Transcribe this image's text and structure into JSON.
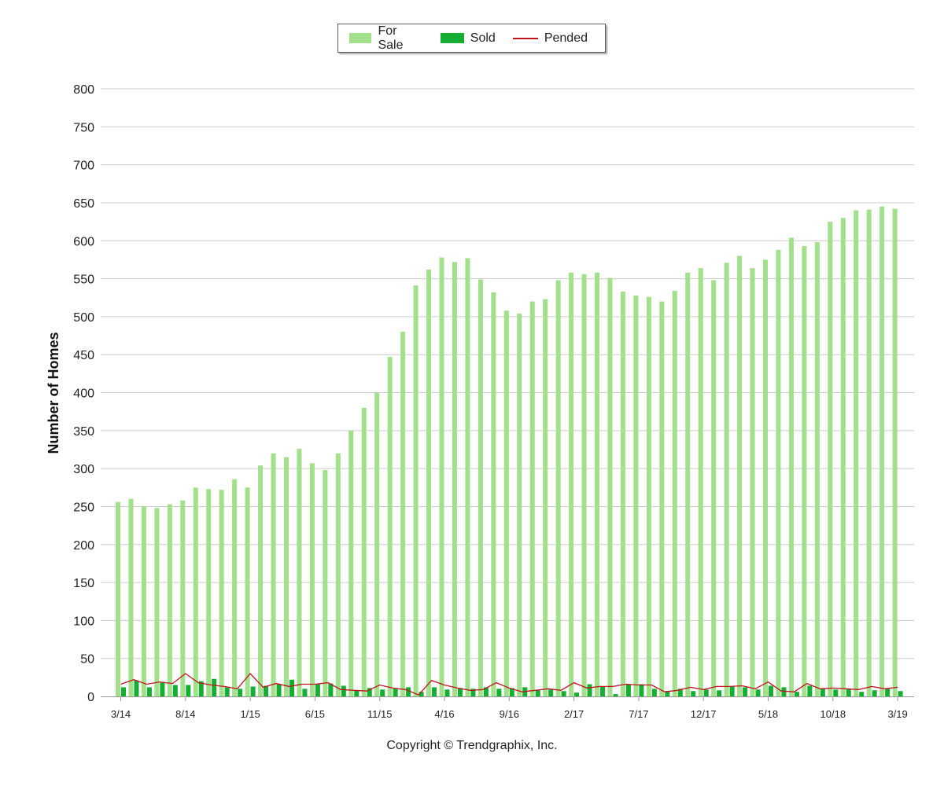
{
  "colors": {
    "for_sale": "#a2e08c",
    "sold": "#14ae32",
    "pended": "#c0141c",
    "grid": "#cccccc",
    "axis": "#999999"
  },
  "legend": {
    "for_sale": "For Sale",
    "sold": "Sold",
    "pended": "Pended"
  },
  "copyright": "Copyright © Trendgraphix, Inc.",
  "chart_data": {
    "type": "bar",
    "ylabel": "Number of Homes",
    "xlabel": "",
    "title": "",
    "ylim": [
      0,
      800
    ],
    "yticks": [
      0,
      50,
      100,
      150,
      200,
      250,
      300,
      350,
      400,
      450,
      500,
      550,
      600,
      650,
      700,
      750,
      800
    ],
    "grid": true,
    "legend_position": "top-center",
    "x_tick_labels": [
      {
        "index": 0,
        "label": "3/14"
      },
      {
        "index": 5,
        "label": "8/14"
      },
      {
        "index": 10,
        "label": "1/15"
      },
      {
        "index": 15,
        "label": "6/15"
      },
      {
        "index": 20,
        "label": "11/15"
      },
      {
        "index": 25,
        "label": "4/16"
      },
      {
        "index": 30,
        "label": "9/16"
      },
      {
        "index": 35,
        "label": "2/17"
      },
      {
        "index": 40,
        "label": "7/17"
      },
      {
        "index": 45,
        "label": "12/17"
      },
      {
        "index": 50,
        "label": "5/18"
      },
      {
        "index": 55,
        "label": "10/18"
      },
      {
        "index": 60,
        "label": "3/19"
      }
    ],
    "series": [
      {
        "name": "For Sale",
        "type": "bar",
        "values": [
          256,
          260,
          250,
          248,
          253,
          258,
          275,
          273,
          272,
          286,
          275,
          304,
          320,
          315,
          326,
          307,
          298,
          320,
          350,
          380,
          400,
          447,
          480,
          541,
          562,
          578,
          572,
          577,
          549,
          532,
          508,
          504,
          520,
          523,
          548,
          558,
          556,
          558,
          551,
          533,
          528,
          526,
          520,
          534,
          558,
          564,
          548,
          571,
          580,
          564,
          575,
          588,
          604,
          593,
          598,
          625,
          630,
          640,
          641,
          645,
          642
        ]
      },
      {
        "name": "Sold",
        "type": "bar",
        "values": [
          12,
          21,
          12,
          19,
          15,
          15,
          20,
          23,
          12,
          10,
          13,
          14,
          16,
          22,
          10,
          16,
          17,
          14,
          8,
          11,
          9,
          10,
          12,
          6,
          12,
          9,
          11,
          10,
          12,
          10,
          11,
          12,
          8,
          9,
          7,
          5,
          16,
          13,
          3,
          16,
          16,
          10,
          7,
          10,
          7,
          9,
          8,
          13,
          12,
          9,
          14,
          12,
          6,
          14,
          10,
          9,
          10,
          6,
          8,
          10,
          7
        ]
      },
      {
        "name": "Pended",
        "type": "line",
        "values": [
          16,
          22,
          16,
          19,
          17,
          30,
          18,
          15,
          13,
          10,
          30,
          12,
          17,
          13,
          16,
          16,
          18,
          9,
          8,
          7,
          15,
          11,
          9,
          2,
          21,
          15,
          11,
          8,
          9,
          18,
          11,
          6,
          8,
          10,
          8,
          18,
          11,
          13,
          13,
          16,
          15,
          15,
          6,
          8,
          12,
          9,
          13,
          13,
          14,
          10,
          19,
          7,
          6,
          17,
          10,
          11,
          10,
          9,
          13,
          10,
          12
        ]
      }
    ]
  }
}
